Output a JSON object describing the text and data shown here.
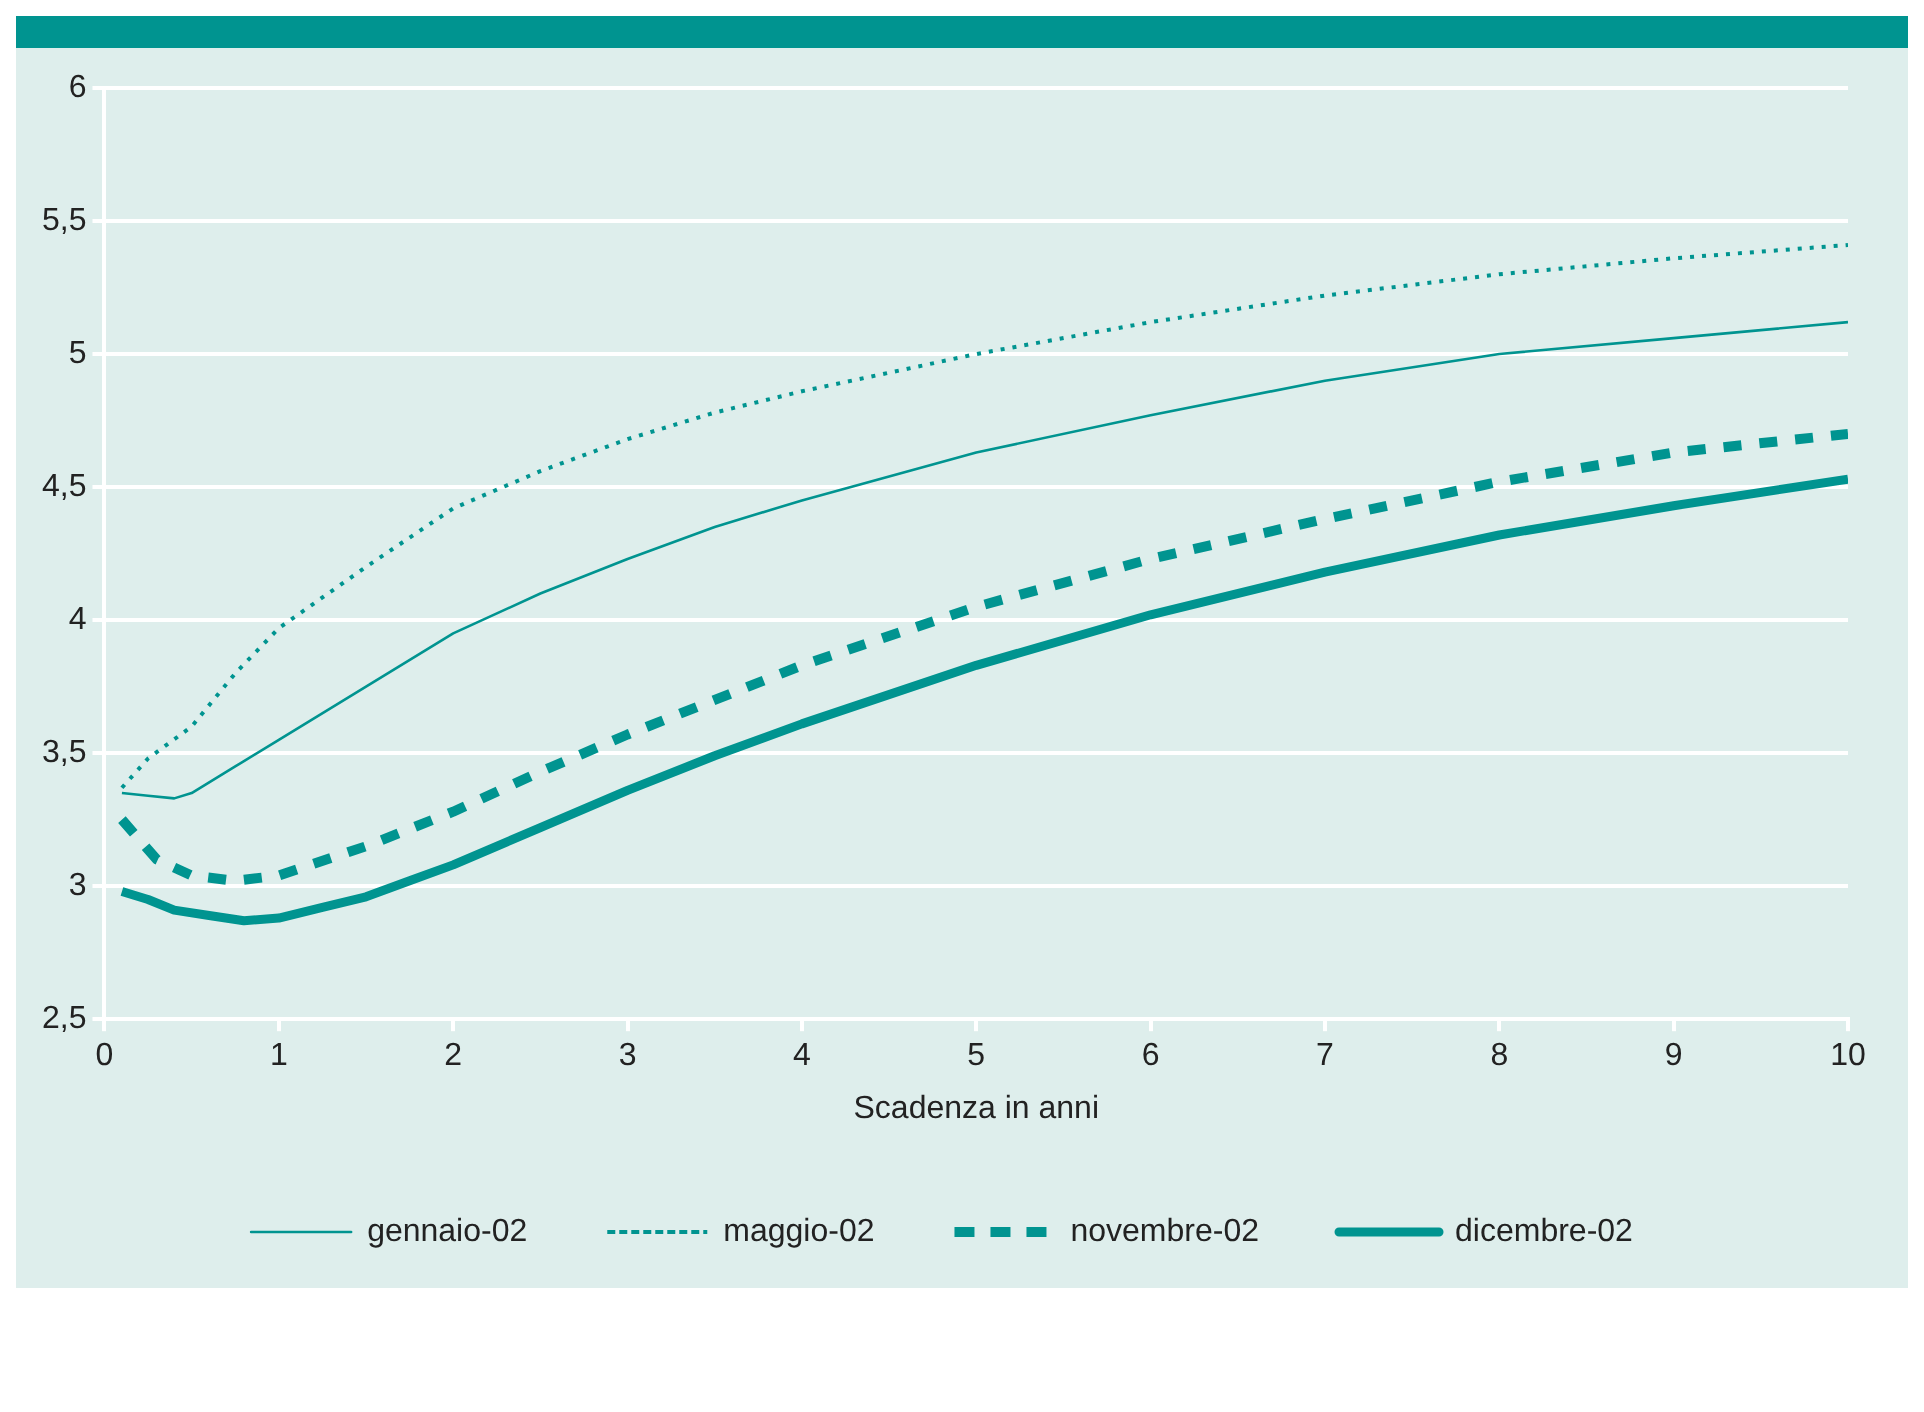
{
  "chart_data": {
    "type": "line",
    "xlabel": "Scadenza in anni",
    "xlim": [
      0,
      10
    ],
    "xticks": [
      0,
      1,
      2,
      3,
      4,
      5,
      6,
      7,
      8,
      9,
      10
    ],
    "ylim": [
      2.5,
      6
    ],
    "yticks": [
      {
        "value": 2.5,
        "label": "2,5"
      },
      3,
      {
        "value": 3.5,
        "label": "3,5"
      },
      4,
      {
        "value": 4.5,
        "label": "4,5"
      },
      5,
      {
        "value": 5.5,
        "label": "5,5"
      },
      6
    ],
    "grid": "y",
    "legend": "bottom",
    "marker": "none",
    "series": [
      {
        "name": "gennaio-02",
        "color": "#009490",
        "line_style": "solid",
        "x": [
          0.1,
          0.25,
          0.4,
          0.5,
          0.75,
          1,
          1.5,
          2,
          2.5,
          3,
          3.5,
          4,
          5,
          6,
          7,
          8,
          9,
          10
        ],
        "values": [
          3.35,
          3.34,
          3.33,
          3.35,
          3.45,
          3.55,
          3.75,
          3.95,
          4.1,
          4.23,
          4.35,
          4.45,
          4.63,
          4.77,
          4.9,
          5.0,
          5.06,
          5.12
        ]
      },
      {
        "name": "maggio-02",
        "color": "#009490",
        "line_style": "dotted",
        "x": [
          0.1,
          0.25,
          0.5,
          0.75,
          1,
          1.5,
          2,
          2.5,
          3,
          3.5,
          4,
          5,
          6,
          7,
          8,
          9,
          10
        ],
        "values": [
          3.37,
          3.48,
          3.6,
          3.8,
          3.97,
          4.2,
          4.42,
          4.56,
          4.68,
          4.78,
          4.86,
          5.0,
          5.12,
          5.22,
          5.3,
          5.36,
          5.41
        ]
      },
      {
        "name": "novembre-02",
        "color": "#009490",
        "line_style": "dashed",
        "x": [
          0.1,
          0.3,
          0.5,
          0.75,
          1,
          1.5,
          2,
          2.5,
          3,
          3.5,
          4,
          5,
          6,
          7,
          8,
          9,
          10
        ],
        "values": [
          3.25,
          3.1,
          3.04,
          3.02,
          3.04,
          3.15,
          3.28,
          3.43,
          3.57,
          3.7,
          3.83,
          4.05,
          4.23,
          4.38,
          4.52,
          4.63,
          4.7
        ]
      },
      {
        "name": "dicembre-02",
        "color": "#009490",
        "line_style": "solid",
        "x": [
          0.1,
          0.25,
          0.4,
          0.6,
          0.8,
          1,
          1.25,
          1.5,
          1.75,
          2,
          2.5,
          3,
          3.5,
          4,
          5,
          6,
          7,
          8,
          9,
          10
        ],
        "values": [
          2.98,
          2.95,
          2.91,
          2.89,
          2.87,
          2.88,
          2.92,
          2.96,
          3.02,
          3.08,
          3.22,
          3.36,
          3.49,
          3.61,
          3.83,
          4.02,
          4.18,
          4.32,
          4.43,
          4.53
        ]
      }
    ]
  }
}
